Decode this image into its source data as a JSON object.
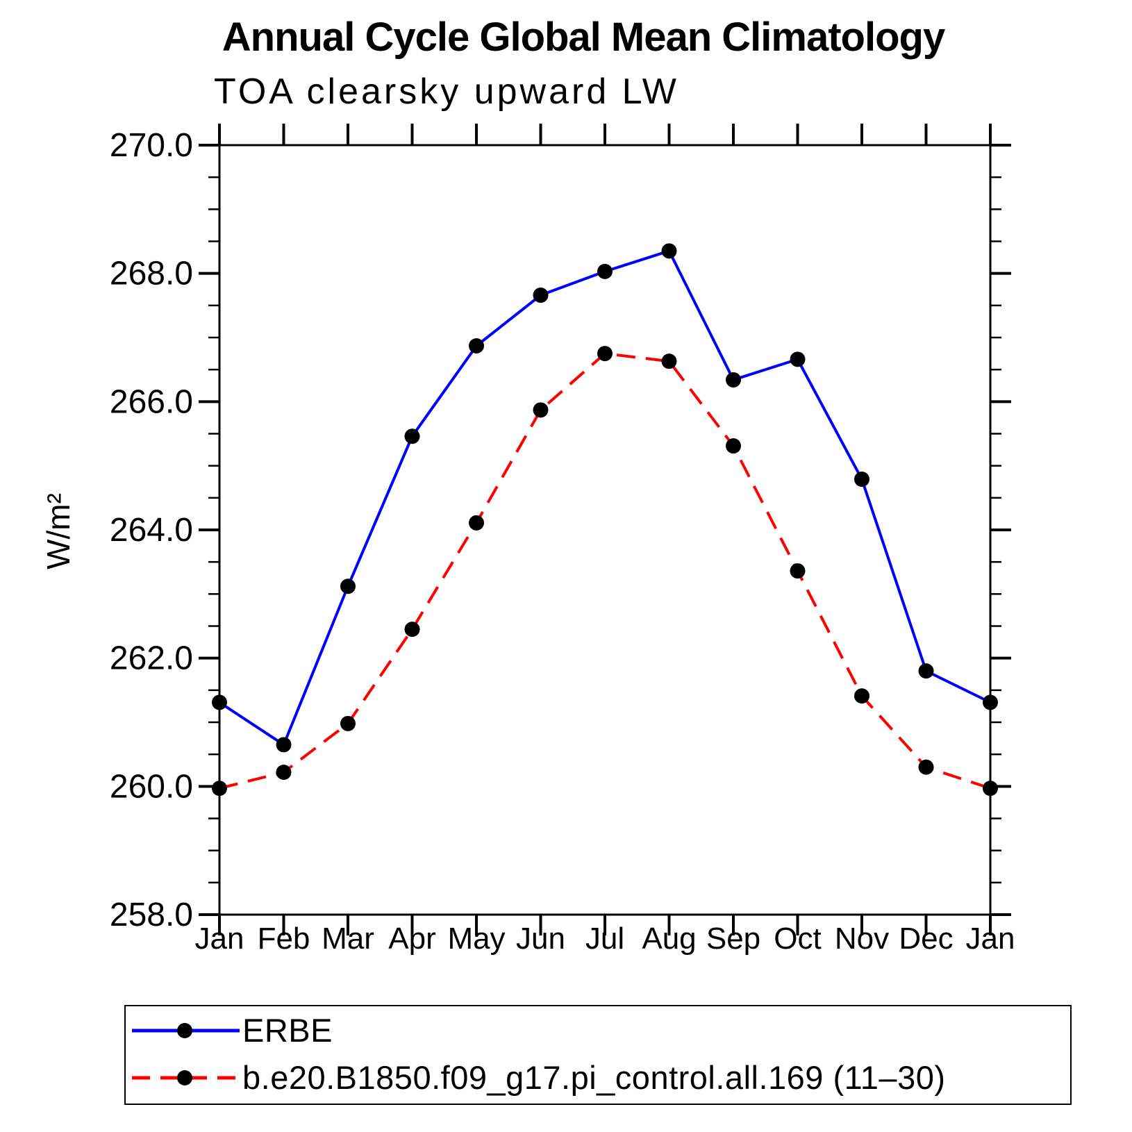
{
  "title": "Annual Cycle Global Mean Climatology",
  "subtitle": "TOA clearsky upward LW",
  "y_axis": {
    "label": "W/m²",
    "tick_labels": [
      "270.0",
      "268.0",
      "266.0",
      "264.0",
      "262.0",
      "260.0",
      "258.0"
    ]
  },
  "x_axis": {
    "tick_labels": [
      "Jan",
      "Feb",
      "Mar",
      "Apr",
      "May",
      "Jun",
      "Jul",
      "Aug",
      "Sep",
      "Oct",
      "Nov",
      "Dec",
      "Jan"
    ]
  },
  "legend": {
    "entries": [
      {
        "label": "ERBE",
        "color": "#0000ff",
        "line_style": "solid",
        "marker_color": "#000000"
      },
      {
        "label": "b.e20.B1850.f09_g17.pi_control.all.169 (11–30)",
        "color": "#ff0000",
        "line_style": "dashed",
        "marker_color": "#000000"
      }
    ]
  },
  "chart_data": {
    "type": "line",
    "title": "Annual Cycle Global Mean Climatology",
    "subtitle": "TOA clearsky upward LW",
    "xlabel": "",
    "ylabel": "W/m²",
    "ylim": [
      258.0,
      270.0
    ],
    "y_major_step": 2.0,
    "y_minor_step": 0.5,
    "grid": false,
    "legend_position": "bottom",
    "categories": [
      "Jan",
      "Feb",
      "Mar",
      "Apr",
      "May",
      "Jun",
      "Jul",
      "Aug",
      "Sep",
      "Oct",
      "Nov",
      "Dec",
      "Jan"
    ],
    "y_tick_values": [
      270.0,
      268.0,
      266.0,
      264.0,
      262.0,
      260.0,
      258.0
    ],
    "series": [
      {
        "name": "ERBE",
        "color": "#0000ff",
        "line_style": "solid",
        "marker": "circle",
        "marker_color": "#000000",
        "values": [
          261.31,
          260.65,
          263.12,
          265.46,
          266.87,
          267.66,
          268.03,
          268.35,
          266.34,
          266.66,
          264.79,
          261.8,
          261.31
        ]
      },
      {
        "name": "b.e20.B1850.f09_g17.pi_control.all.169 (11–30)",
        "color": "#ff0000",
        "line_style": "dashed",
        "marker": "circle",
        "marker_color": "#000000",
        "values": [
          259.97,
          260.22,
          260.98,
          262.45,
          264.11,
          265.87,
          266.75,
          266.63,
          265.31,
          263.36,
          261.41,
          260.3,
          259.97
        ]
      }
    ]
  }
}
